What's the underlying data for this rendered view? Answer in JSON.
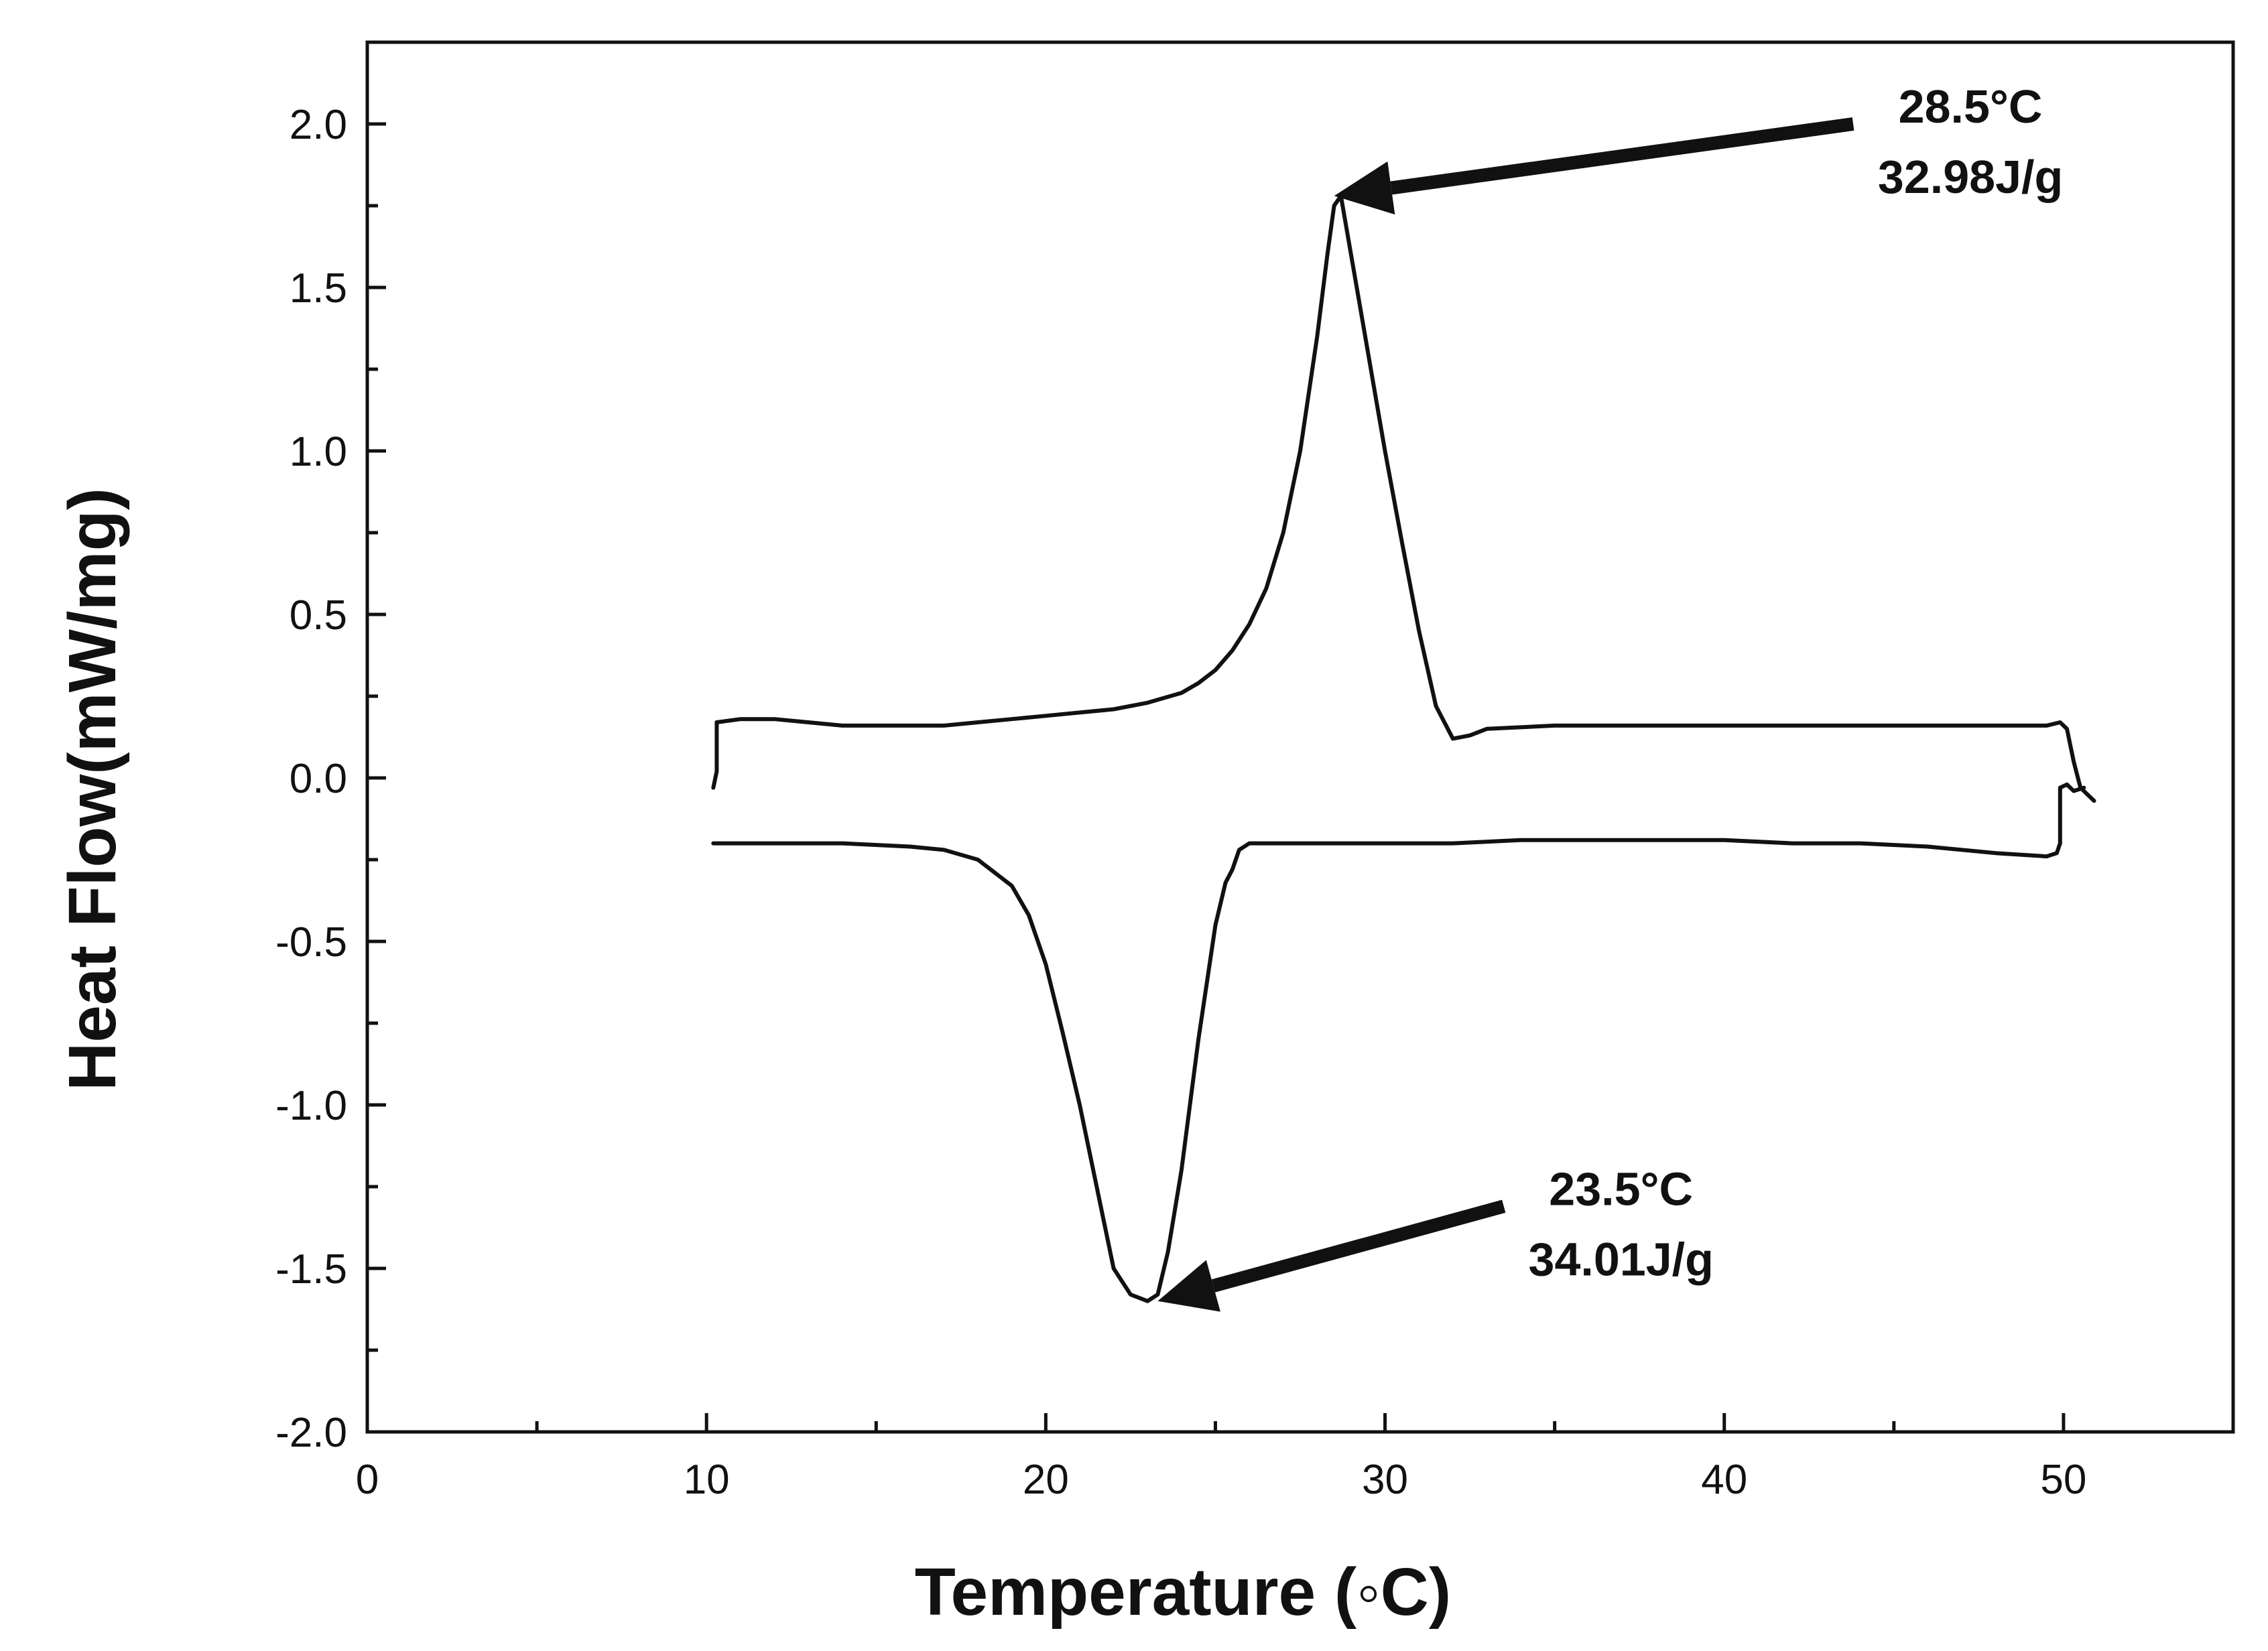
{
  "chart_data": {
    "type": "line",
    "title": "",
    "xlabel": "Temperature (◦C)",
    "ylabel": "Heat Flow(mW/mg)",
    "xlim": [
      0,
      55
    ],
    "ylim": [
      -2.0,
      2.25
    ],
    "x_ticks": [
      0,
      10,
      20,
      30,
      40,
      50
    ],
    "x_tick_labels": [
      "0",
      "10",
      "20",
      "30",
      "40",
      "50"
    ],
    "y_ticks": [
      -2.0,
      -1.5,
      -1.0,
      -0.5,
      0.0,
      0.5,
      1.0,
      1.5,
      2.0
    ],
    "y_tick_labels": [
      "-2.0",
      "-1.5",
      "-1.0",
      "-0.5",
      "0.0",
      "0.5",
      "1.0",
      "1.5",
      "2.0"
    ],
    "grid": false,
    "line_color": "#111111",
    "series": [
      {
        "x": [
          10.2,
          10.3,
          10.3,
          11.0,
          12.0,
          13.0,
          14.0,
          15.0,
          16.0,
          17.0,
          18.0,
          19.0,
          20.0,
          21.0,
          22.0,
          23.0,
          24.0,
          24.5,
          25.0,
          25.5,
          26.0,
          26.5,
          27.0,
          27.5,
          28.0,
          28.3,
          28.5,
          28.7,
          29.0,
          29.5,
          30.0,
          30.5,
          31.0,
          31.5,
          32.0,
          32.5,
          33.0,
          35.0,
          38.0,
          40.0,
          42.0,
          44.0,
          46.0,
          48.0,
          49.5,
          49.9,
          50.1,
          50.3,
          50.5,
          50.7,
          50.9
        ],
        "y": [
          -0.03,
          0.02,
          0.17,
          0.18,
          0.18,
          0.17,
          0.16,
          0.16,
          0.16,
          0.16,
          0.17,
          0.18,
          0.19,
          0.2,
          0.21,
          0.23,
          0.26,
          0.29,
          0.33,
          0.39,
          0.47,
          0.58,
          0.75,
          1.0,
          1.35,
          1.6,
          1.75,
          1.78,
          1.6,
          1.3,
          1.0,
          0.72,
          0.45,
          0.22,
          0.12,
          0.13,
          0.15,
          0.16,
          0.16,
          0.16,
          0.16,
          0.16,
          0.16,
          0.16,
          0.16,
          0.17,
          0.15,
          0.05,
          -0.03,
          -0.05,
          -0.07
        ]
      },
      {
        "x": [
          10.2,
          12.0,
          14.0,
          16.0,
          17.0,
          18.0,
          19.0,
          19.5,
          20.0,
          20.5,
          21.0,
          21.5,
          22.0,
          22.5,
          23.0,
          23.3,
          23.6,
          24.0,
          24.5,
          25.0,
          25.3,
          25.5,
          25.7,
          26.0,
          28.0,
          30.0,
          32.0,
          34.0,
          36.0,
          38.0,
          40.0,
          42.0,
          44.0,
          46.0,
          48.0,
          49.5,
          49.8,
          49.9,
          49.9,
          50.1,
          50.3,
          50.6
        ],
        "y": [
          -0.2,
          -0.2,
          -0.2,
          -0.21,
          -0.22,
          -0.25,
          -0.33,
          -0.42,
          -0.57,
          -0.78,
          -1.0,
          -1.25,
          -1.5,
          -1.58,
          -1.6,
          -1.58,
          -1.45,
          -1.2,
          -0.8,
          -0.45,
          -0.32,
          -0.28,
          -0.22,
          -0.2,
          -0.2,
          -0.2,
          -0.2,
          -0.19,
          -0.19,
          -0.19,
          -0.19,
          -0.2,
          -0.2,
          -0.21,
          -0.23,
          -0.24,
          -0.23,
          -0.2,
          -0.03,
          -0.02,
          -0.04,
          -0.03
        ]
      }
    ],
    "annotations": [
      {
        "lines": [
          "28.5°C",
          "32.98J/g"
        ],
        "target": [
          28.5,
          1.78
        ],
        "tail": [
          43.8,
          2.0
        ]
      },
      {
        "lines": [
          "23.5°C",
          "34.01J/g"
        ],
        "target": [
          23.3,
          -1.6
        ],
        "tail": [
          33.5,
          -1.31
        ]
      }
    ]
  }
}
